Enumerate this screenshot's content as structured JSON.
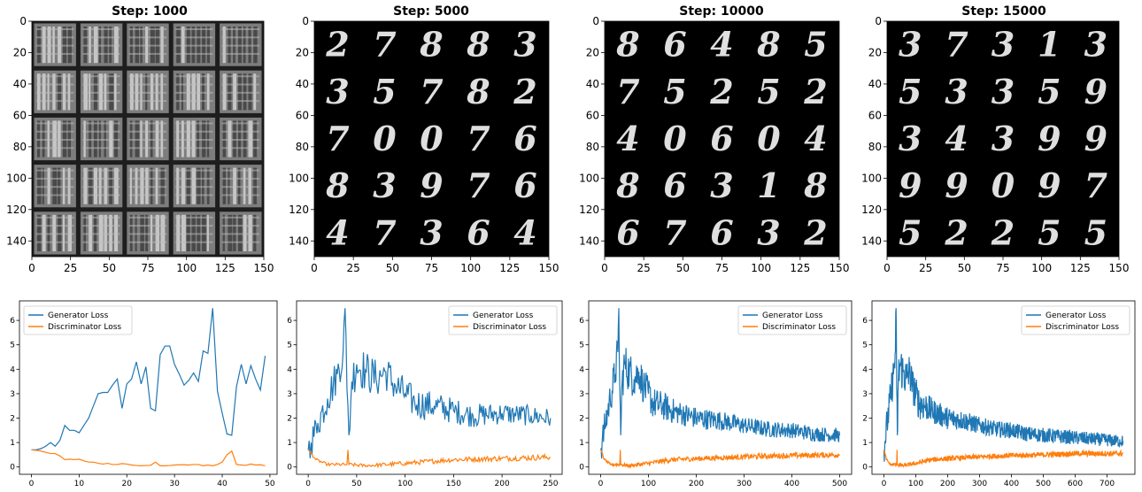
{
  "colors": {
    "generator": "#1f77b4",
    "discriminator": "#ff7f0e"
  },
  "chart_data": [
    {
      "type": "heatmap",
      "title": "Step: 1000",
      "xlim": [
        0,
        150
      ],
      "ylim": [
        0,
        150
      ],
      "xticks": [
        0,
        25,
        50,
        75,
        100,
        125,
        150
      ],
      "yticks": [
        0,
        20,
        40,
        60,
        80,
        100,
        120,
        140
      ],
      "grid_rows": 5,
      "grid_cols": 5,
      "digits": []
    },
    {
      "type": "heatmap",
      "title": "Step: 5000",
      "xlim": [
        0,
        150
      ],
      "ylim": [
        0,
        150
      ],
      "xticks": [
        0,
        25,
        50,
        75,
        100,
        125,
        150
      ],
      "yticks": [
        0,
        20,
        40,
        60,
        80,
        100,
        120,
        140
      ],
      "grid_rows": 5,
      "grid_cols": 5,
      "digits": [
        "2",
        "7",
        "8",
        "8",
        "3",
        "3",
        "5",
        "7",
        "8",
        "2",
        "7",
        "0",
        "0",
        "7",
        "6",
        "8",
        "3",
        "9",
        "7",
        "6",
        "4",
        "7",
        "3",
        "6",
        "4"
      ]
    },
    {
      "type": "heatmap",
      "title": "Step: 10000",
      "xlim": [
        0,
        150
      ],
      "ylim": [
        0,
        150
      ],
      "xticks": [
        0,
        25,
        50,
        75,
        100,
        125,
        150
      ],
      "yticks": [
        0,
        20,
        40,
        60,
        80,
        100,
        120,
        140
      ],
      "grid_rows": 5,
      "grid_cols": 5,
      "digits": [
        "8",
        "6",
        "4",
        "8",
        "5",
        "7",
        "5",
        "2",
        "5",
        "2",
        "4",
        "0",
        "6",
        "0",
        "4",
        "8",
        "6",
        "3",
        "1",
        "8",
        "6",
        "7",
        "6",
        "3",
        "2"
      ]
    },
    {
      "type": "heatmap",
      "title": "Step: 15000",
      "xlim": [
        0,
        150
      ],
      "ylim": [
        0,
        150
      ],
      "xticks": [
        0,
        25,
        50,
        75,
        100,
        125,
        150
      ],
      "yticks": [
        0,
        20,
        40,
        60,
        80,
        100,
        120,
        140
      ],
      "grid_rows": 5,
      "grid_cols": 5,
      "digits": [
        "3",
        "7",
        "3",
        "1",
        "3",
        "5",
        "3",
        "3",
        "5",
        "9",
        "3",
        "4",
        "3",
        "9",
        "9",
        "9",
        "9",
        "0",
        "9",
        "7",
        "5",
        "2",
        "2",
        "5",
        "5"
      ]
    },
    {
      "type": "line",
      "xlim": [
        -2.5,
        51.5
      ],
      "ylim": [
        -0.3,
        6.8
      ],
      "xticks": [
        0,
        10,
        20,
        30,
        40,
        50
      ],
      "yticks": [
        0,
        1,
        2,
        3,
        4,
        5,
        6
      ],
      "legend": "top-left",
      "x": [
        0,
        1,
        2,
        3,
        4,
        5,
        6,
        7,
        8,
        9,
        10,
        11,
        12,
        13,
        14,
        15,
        16,
        17,
        18,
        19,
        20,
        21,
        22,
        23,
        24,
        25,
        26,
        27,
        28,
        29,
        30,
        31,
        32,
        33,
        34,
        35,
        36,
        37,
        38,
        39,
        40,
        41,
        42,
        43,
        44,
        45,
        46,
        47,
        48,
        49
      ],
      "series": [
        {
          "name": "Generator Loss",
          "values": [
            0.7,
            0.7,
            0.75,
            0.85,
            1.0,
            0.85,
            1.1,
            1.7,
            1.5,
            1.5,
            1.4,
            1.7,
            2.0,
            2.5,
            3.0,
            3.05,
            3.05,
            3.35,
            3.6,
            2.4,
            3.4,
            3.6,
            4.3,
            3.4,
            4.1,
            2.4,
            2.3,
            4.6,
            4.95,
            4.95,
            4.2,
            3.8,
            3.35,
            3.55,
            3.85,
            3.5,
            4.75,
            4.65,
            6.5,
            3.1,
            2.2,
            1.35,
            1.3,
            3.3,
            4.2,
            3.4,
            4.15,
            3.6,
            3.15,
            4.55
          ]
        },
        {
          "name": "Discriminator Loss",
          "values": [
            0.7,
            0.68,
            0.65,
            0.6,
            0.55,
            0.55,
            0.45,
            0.3,
            0.32,
            0.3,
            0.32,
            0.25,
            0.2,
            0.2,
            0.15,
            0.12,
            0.15,
            0.1,
            0.1,
            0.14,
            0.12,
            0.08,
            0.06,
            0.05,
            0.06,
            0.07,
            0.2,
            0.05,
            0.05,
            0.06,
            0.08,
            0.09,
            0.09,
            0.08,
            0.1,
            0.1,
            0.05,
            0.08,
            0.05,
            0.1,
            0.2,
            0.5,
            0.65,
            0.1,
            0.08,
            0.07,
            0.12,
            0.08,
            0.09,
            0.05
          ]
        }
      ]
    },
    {
      "type": "line",
      "xlim": [
        -12,
        262
      ],
      "ylim": [
        -0.3,
        6.8
      ],
      "xticks": [
        0,
        50,
        100,
        150,
        200,
        250
      ],
      "yticks": [
        0,
        1,
        2,
        3,
        4,
        5,
        6
      ],
      "legend": "top-right",
      "series_profile": [
        {
          "name": "Generator Loss",
          "knots": [
            [
              0,
              0.7
            ],
            [
              3,
              1.0
            ],
            [
              10,
              1.8
            ],
            [
              20,
              2.8
            ],
            [
              30,
              3.8
            ],
            [
              36,
              4.7
            ],
            [
              38,
              6.5
            ],
            [
              40,
              3.2
            ],
            [
              42,
              1.3
            ],
            [
              45,
              3.5
            ],
            [
              50,
              4.2
            ],
            [
              60,
              3.9
            ],
            [
              70,
              3.6
            ],
            [
              80,
              3.9
            ],
            [
              90,
              3.3
            ],
            [
              100,
              3.0
            ],
            [
              110,
              2.6
            ],
            [
              130,
              2.5
            ],
            [
              150,
              2.3
            ],
            [
              170,
              2.1
            ],
            [
              200,
              2.2
            ],
            [
              230,
              2.1
            ],
            [
              250,
              2.0
            ]
          ],
          "noise": [
            0,
            0.6,
            50,
            0.9,
            100,
            0.7,
            160,
            0.5,
            250,
            0.4
          ]
        },
        {
          "name": "Discriminator Loss",
          "knots": [
            [
              0,
              0.7
            ],
            [
              8,
              0.3
            ],
            [
              20,
              0.1
            ],
            [
              40,
              0.1
            ],
            [
              41,
              0.7
            ],
            [
              42,
              0.1
            ],
            [
              60,
              0.05
            ],
            [
              100,
              0.15
            ],
            [
              150,
              0.3
            ],
            [
              200,
              0.35
            ],
            [
              250,
              0.4
            ]
          ],
          "noise": [
            0,
            0.05,
            120,
            0.1,
            250,
            0.12
          ]
        }
      ]
    },
    {
      "type": "line",
      "xlim": [
        -25,
        525
      ],
      "ylim": [
        -0.3,
        6.8
      ],
      "xticks": [
        0,
        100,
        200,
        300,
        400,
        500
      ],
      "yticks": [
        0,
        1,
        2,
        3,
        4,
        5,
        6
      ],
      "legend": "top-right",
      "series_profile": [
        {
          "name": "Generator Loss",
          "knots": [
            [
              0,
              0.7
            ],
            [
              3,
              1.0
            ],
            [
              10,
              1.8
            ],
            [
              20,
              2.8
            ],
            [
              30,
              3.8
            ],
            [
              36,
              4.7
            ],
            [
              38,
              6.5
            ],
            [
              40,
              3.2
            ],
            [
              42,
              1.3
            ],
            [
              45,
              3.5
            ],
            [
              50,
              4.2
            ],
            [
              60,
              3.9
            ],
            [
              70,
              3.6
            ],
            [
              80,
              3.9
            ],
            [
              90,
              3.3
            ],
            [
              100,
              3.0
            ],
            [
              110,
              2.6
            ],
            [
              130,
              2.5
            ],
            [
              150,
              2.3
            ],
            [
              200,
              2.0
            ],
            [
              250,
              1.9
            ],
            [
              300,
              1.7
            ],
            [
              350,
              1.55
            ],
            [
              400,
              1.5
            ],
            [
              450,
              1.35
            ],
            [
              500,
              1.3
            ]
          ],
          "noise": [
            0,
            0.6,
            50,
            0.9,
            100,
            0.7,
            160,
            0.5,
            300,
            0.35,
            500,
            0.3
          ]
        },
        {
          "name": "Discriminator Loss",
          "knots": [
            [
              0,
              0.7
            ],
            [
              8,
              0.3
            ],
            [
              20,
              0.1
            ],
            [
              40,
              0.1
            ],
            [
              41,
              0.7
            ],
            [
              42,
              0.1
            ],
            [
              60,
              0.05
            ],
            [
              100,
              0.15
            ],
            [
              150,
              0.3
            ],
            [
              250,
              0.38
            ],
            [
              350,
              0.45
            ],
            [
              500,
              0.5
            ]
          ],
          "noise": [
            0,
            0.05,
            120,
            0.1,
            500,
            0.12
          ]
        }
      ]
    },
    {
      "type": "line",
      "xlim": [
        -37.5,
        787.5
      ],
      "ylim": [
        -0.3,
        6.8
      ],
      "xticks": [
        0,
        100,
        200,
        300,
        400,
        500,
        600,
        700
      ],
      "yticks": [
        0,
        1,
        2,
        3,
        4,
        5,
        6
      ],
      "legend": "top-right",
      "series_profile": [
        {
          "name": "Generator Loss",
          "knots": [
            [
              0,
              0.7
            ],
            [
              3,
              1.0
            ],
            [
              10,
              1.8
            ],
            [
              20,
              2.8
            ],
            [
              30,
              3.8
            ],
            [
              36,
              4.7
            ],
            [
              38,
              6.5
            ],
            [
              40,
              3.2
            ],
            [
              42,
              1.3
            ],
            [
              45,
              3.5
            ],
            [
              50,
              4.2
            ],
            [
              60,
              3.9
            ],
            [
              70,
              3.6
            ],
            [
              80,
              3.9
            ],
            [
              90,
              3.3
            ],
            [
              100,
              3.0
            ],
            [
              110,
              2.6
            ],
            [
              130,
              2.5
            ],
            [
              150,
              2.3
            ],
            [
              200,
              2.0
            ],
            [
              250,
              1.9
            ],
            [
              300,
              1.7
            ],
            [
              350,
              1.55
            ],
            [
              400,
              1.5
            ],
            [
              450,
              1.35
            ],
            [
              500,
              1.3
            ],
            [
              600,
              1.2
            ],
            [
              700,
              1.1
            ],
            [
              750,
              1.05
            ]
          ],
          "noise": [
            0,
            0.6,
            50,
            0.9,
            100,
            0.7,
            160,
            0.5,
            300,
            0.35,
            750,
            0.25
          ]
        },
        {
          "name": "Discriminator Loss",
          "knots": [
            [
              0,
              0.7
            ],
            [
              8,
              0.3
            ],
            [
              20,
              0.1
            ],
            [
              40,
              0.1
            ],
            [
              41,
              0.7
            ],
            [
              42,
              0.1
            ],
            [
              60,
              0.05
            ],
            [
              100,
              0.15
            ],
            [
              150,
              0.3
            ],
            [
              250,
              0.38
            ],
            [
              350,
              0.45
            ],
            [
              500,
              0.5
            ],
            [
              600,
              0.55
            ],
            [
              750,
              0.55
            ]
          ],
          "noise": [
            0,
            0.05,
            120,
            0.1,
            750,
            0.12
          ]
        }
      ]
    }
  ]
}
